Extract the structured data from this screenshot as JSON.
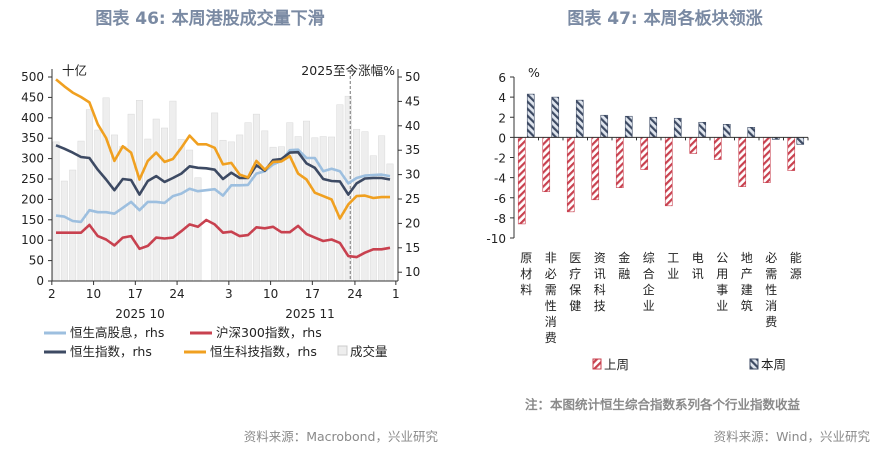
{
  "chart_data": [
    {
      "type": "line",
      "title": "图表 46: 本周港股成交量下滑",
      "left_unit": "十亿",
      "right_unit": "2025至今涨幅%",
      "ylim_left": [
        0,
        500
      ],
      "yticks_left": [
        0,
        50,
        100,
        150,
        200,
        250,
        300,
        350,
        400,
        450,
        500
      ],
      "ylim_right": [
        8.2,
        50
      ],
      "yticks_right": [
        10,
        15,
        20,
        25,
        30,
        35,
        40,
        45,
        50
      ],
      "x": [
        "10-02",
        "10-03",
        "10-06",
        "10-08",
        "10-09",
        "10-10",
        "10-13",
        "10-14",
        "10-15",
        "10-16",
        "10-17",
        "10-20",
        "10-21",
        "10-22",
        "10-23",
        "10-24",
        "10-27",
        "10-28",
        "10-29",
        "10-30",
        "10-31",
        "11-03",
        "11-04",
        "11-05",
        "11-06",
        "11-07",
        "11-10",
        "11-11",
        "11-12",
        "11-13",
        "11-14",
        "11-17",
        "11-18",
        "11-19",
        "11-20",
        "11-21",
        "11-24",
        "11-25",
        "11-26",
        "11-27",
        "11-28"
      ],
      "xtick_labels": [
        "2",
        "10",
        "17",
        "24",
        "3",
        "10",
        "17",
        "24",
        "1"
      ],
      "month_labels": [
        "2025 10",
        "2025 11"
      ],
      "marker_line": "11-21",
      "series": [
        {
          "name": "成交量",
          "axis": "left",
          "kind": "bar",
          "color": "#e6e6e6",
          "values": [
            341,
            245,
            272,
            343,
            420,
            370,
            449,
            358,
            330,
            409,
            443,
            348,
            397,
            375,
            441,
            347,
            321,
            253,
            null,
            412,
            345,
            341,
            358,
            388,
            409,
            368,
            328,
            329,
            388,
            354,
            392,
            351,
            354,
            353,
            432,
            453,
            372,
            366,
            307,
            356,
            287
          ]
        },
        {
          "name": "恒生高股息，rhs",
          "axis": "right",
          "color": "#9dbfdf",
          "values": [
            21.6,
            21.4,
            20.5,
            20.3,
            22.7,
            22.3,
            22.3,
            22.0,
            23.2,
            24.4,
            22.7,
            24.4,
            24.4,
            24.2,
            25.6,
            26.1,
            27.1,
            26.6,
            26.8,
            27.0,
            25.7,
            27.8,
            27.8,
            27.9,
            30.2,
            30.7,
            32.1,
            32.8,
            35.0,
            35.1,
            33.4,
            33.4,
            30.7,
            31.2,
            30.7,
            28.2,
            29.3,
            29.8,
            29.9,
            30.0,
            29.7
          ]
        },
        {
          "name": "沪深300指数，rhs",
          "axis": "right",
          "color": "#c8414f",
          "values": [
            18.1,
            18.1,
            18.1,
            18.1,
            19.7,
            17.4,
            16.7,
            15.5,
            17.1,
            17.4,
            14.8,
            15.4,
            17.1,
            16.9,
            17.1,
            18.4,
            19.8,
            19.3,
            20.7,
            19.8,
            18.1,
            18.3,
            17.4,
            17.6,
            19.2,
            19.0,
            19.3,
            18.2,
            18.2,
            19.5,
            17.8,
            17.1,
            16.4,
            16.7,
            16.0,
            13.3,
            13.1,
            14.0,
            14.7,
            14.7,
            15.0
          ]
        },
        {
          "name": "恒生指数，rhs",
          "axis": "right",
          "color": "#3d4a63",
          "values": [
            36.0,
            35.3,
            34.5,
            33.6,
            33.4,
            31.0,
            29.0,
            26.8,
            29.1,
            28.9,
            25.9,
            28.7,
            29.7,
            28.5,
            29.3,
            30.2,
            31.7,
            31.4,
            31.3,
            31.0,
            29.1,
            30.4,
            29.3,
            29.3,
            31.9,
            30.8,
            33.0,
            33.2,
            34.5,
            34.6,
            32.3,
            31.4,
            29.1,
            28.7,
            28.6,
            25.9,
            28.2,
            29.2,
            29.3,
            29.3,
            29.0
          ]
        },
        {
          "name": "恒生科技指数，rhs",
          "axis": "right",
          "color": "#f0a020",
          "values": [
            49.5,
            48.1,
            46.8,
            45.9,
            44.8,
            40.3,
            37.5,
            32.8,
            35.8,
            34.5,
            29.0,
            32.8,
            34.5,
            32.6,
            33.2,
            35.5,
            38.0,
            36.2,
            36.2,
            35.5,
            32.1,
            32.4,
            30.0,
            29.4,
            32.8,
            31.0,
            32.6,
            32.7,
            33.8,
            30.2,
            29.0,
            26.3,
            25.6,
            24.9,
            21.0,
            23.9,
            25.6,
            25.7,
            25.2,
            25.4,
            25.4
          ]
        }
      ],
      "legend_placement": "bottom",
      "source": "资料来源：Macrobond，兴业研究"
    },
    {
      "type": "bar",
      "title": "图表 47: 本周各板块领涨",
      "unit": "%",
      "ylim": [
        -10,
        6
      ],
      "yticks": [
        -10,
        -8,
        -6,
        -4,
        -2,
        0,
        2,
        4,
        6
      ],
      "categories": [
        "原材料",
        "非必需性消费",
        "医疗保健",
        "资讯科技",
        "金融",
        "综合企业",
        "工业",
        "电讯",
        "公用事业",
        "地产建筑",
        "必需性消费",
        "能源"
      ],
      "series": [
        {
          "name": "上周",
          "color": "#c8414f",
          "pattern": "hatched",
          "values": [
            -8.6,
            -5.4,
            -7.4,
            -6.2,
            -5.0,
            -3.2,
            -6.8,
            -1.6,
            -2.2,
            -4.9,
            -4.5,
            -3.3
          ]
        },
        {
          "name": "本周",
          "color": "#3d4a63",
          "pattern": "hatched",
          "values": [
            4.3,
            4.0,
            3.7,
            2.2,
            2.1,
            2.0,
            1.9,
            1.5,
            1.3,
            1.0,
            -0.2,
            -0.7
          ]
        }
      ],
      "legend_placement": "bottom",
      "note": "注：本图统计恒生综合指数系列各个行业指数收益",
      "source": "资料来源：Wind，兴业研究"
    }
  ]
}
